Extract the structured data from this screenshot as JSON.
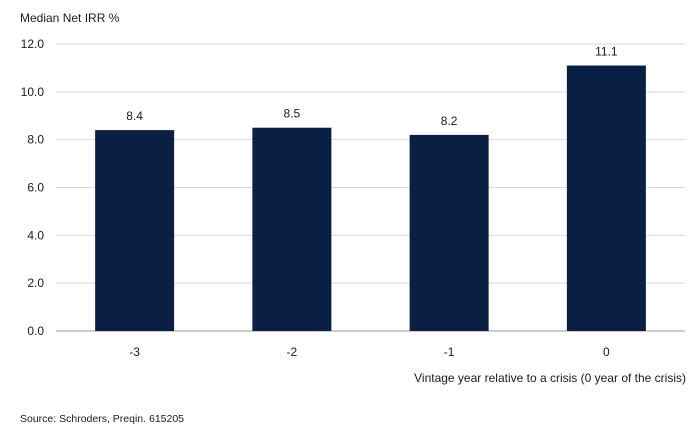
{
  "chart_data": {
    "type": "bar",
    "title": "",
    "ylabel": "Median Net IRR %",
    "xlabel": "Vintage year relative to a crisis (0 year of the crisis)",
    "categories": [
      "-3",
      "-2",
      "-1",
      "0"
    ],
    "values": [
      8.4,
      8.5,
      8.2,
      11.1
    ],
    "value_labels": [
      "8.4",
      "8.5",
      "8.2",
      "11.1"
    ],
    "yticks": [
      "0.0",
      "2.0",
      "4.0",
      "6.0",
      "8.0",
      "10.0",
      "12.0"
    ],
    "ylim": [
      0,
      12
    ],
    "grid": true,
    "bar_color": "#0b1f45",
    "grid_color": "#d9d9d9",
    "axis_color": "#9a9a9a"
  },
  "footer": {
    "source": "Source: Schroders, Preqin. 615205"
  }
}
